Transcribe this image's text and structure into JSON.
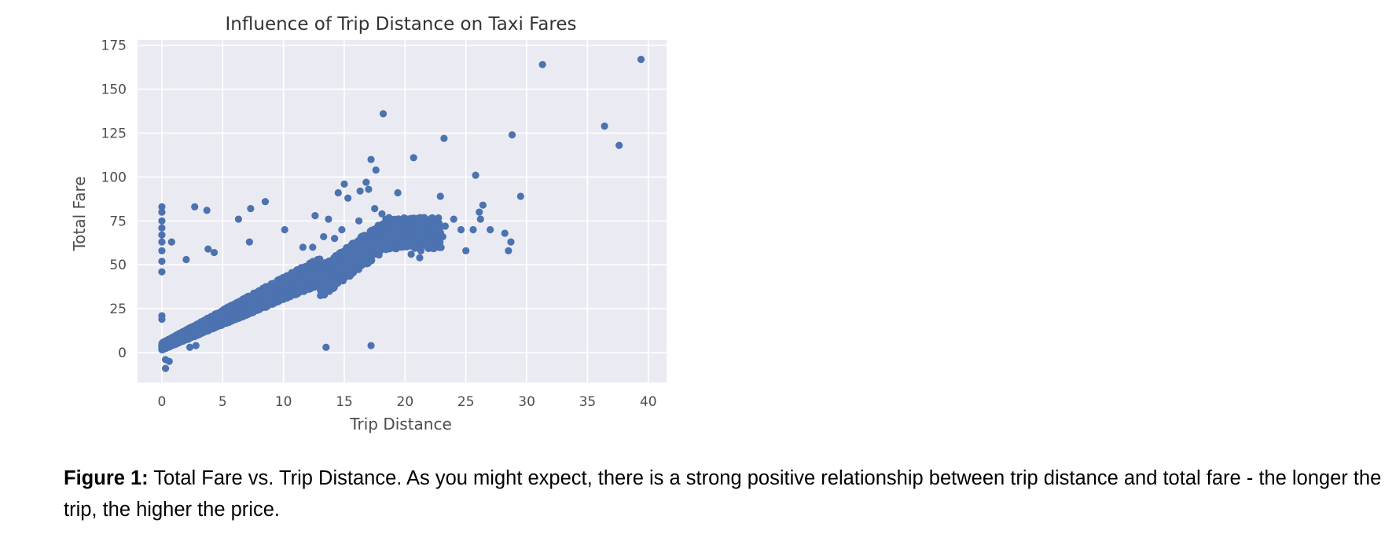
{
  "chart_data": {
    "type": "scatter",
    "title": "Influence of Trip Distance on Taxi Fares",
    "xlabel": "Trip Distance",
    "ylabel": "Total Fare",
    "xlim": [
      -2,
      41.5
    ],
    "ylim": [
      -17,
      178
    ],
    "xticks": [
      0,
      5,
      10,
      15,
      20,
      25,
      30,
      35,
      40
    ],
    "yticks": [
      0,
      25,
      50,
      75,
      100,
      125,
      150,
      175
    ],
    "grid": true,
    "colors": {
      "point": "#4c72b0",
      "plot_background": "#eaeaf2",
      "grid": "#ffffff"
    },
    "series": [
      {
        "points": [
          [
            0,
            83
          ],
          [
            0,
            80
          ],
          [
            0,
            75
          ],
          [
            0,
            71
          ],
          [
            0,
            67
          ],
          [
            0,
            63
          ],
          [
            0,
            58
          ],
          [
            0,
            52
          ],
          [
            0,
            46
          ],
          [
            0,
            21
          ],
          [
            0,
            19
          ],
          [
            0.8,
            63
          ],
          [
            2.7,
            83
          ],
          [
            3.7,
            81
          ],
          [
            2,
            53
          ],
          [
            3.8,
            59
          ],
          [
            4.3,
            57
          ],
          [
            6.3,
            76
          ],
          [
            7.3,
            82
          ],
          [
            7.2,
            63
          ],
          [
            8.5,
            86
          ],
          [
            10.1,
            70
          ],
          [
            12.6,
            78
          ],
          [
            13.3,
            66
          ],
          [
            14.5,
            91
          ],
          [
            15,
            96
          ],
          [
            15.3,
            88
          ],
          [
            16.3,
            92
          ],
          [
            16.8,
            97
          ],
          [
            17,
            93
          ],
          [
            17.2,
            110
          ],
          [
            17.6,
            104
          ],
          [
            18.2,
            136
          ],
          [
            19.4,
            91
          ],
          [
            20.7,
            111
          ],
          [
            23.2,
            122
          ],
          [
            22.9,
            89
          ],
          [
            25.8,
            101
          ],
          [
            28.8,
            124
          ],
          [
            29.5,
            89
          ],
          [
            31.3,
            164
          ],
          [
            36.4,
            129
          ],
          [
            37.6,
            118
          ],
          [
            39.4,
            167
          ],
          [
            24,
            76
          ],
          [
            24.6,
            70
          ],
          [
            25,
            58
          ],
          [
            25.6,
            70
          ],
          [
            26.1,
            80
          ],
          [
            26.4,
            84
          ],
          [
            26.2,
            76
          ],
          [
            27,
            70
          ],
          [
            28.2,
            68
          ],
          [
            28.5,
            58
          ],
          [
            28.7,
            63
          ],
          [
            13.5,
            3
          ],
          [
            17.2,
            4
          ],
          [
            0.3,
            -4
          ],
          [
            0.6,
            -5
          ],
          [
            0.3,
            -9
          ],
          [
            2.3,
            3
          ],
          [
            2.8,
            4
          ],
          [
            14.2,
            65
          ],
          [
            16.2,
            75
          ],
          [
            21.8,
            73
          ],
          [
            22.3,
            68
          ],
          [
            23.1,
            66
          ],
          [
            19.8,
            62
          ],
          [
            20.5,
            56
          ],
          [
            21.3,
            58
          ],
          [
            16.9,
            64
          ],
          [
            15.2,
            48
          ],
          [
            16.6,
            52
          ],
          [
            21.2,
            54
          ],
          [
            19.2,
            74
          ],
          [
            20.6,
            75
          ],
          [
            23.3,
            72
          ],
          [
            13.7,
            76
          ],
          [
            12.4,
            60
          ],
          [
            11.6,
            60
          ],
          [
            18.1,
            79
          ],
          [
            17.5,
            82
          ],
          [
            22.5,
            70
          ],
          [
            14.8,
            70
          ],
          [
            20.2,
            70
          ]
        ]
      }
    ]
  },
  "caption": {
    "label": "Figure 1:",
    "text": " Total Fare vs. Trip Distance. As you might expect, there is a strong positive relationship between trip distance and total fare - the longer the trip, the higher the price."
  }
}
